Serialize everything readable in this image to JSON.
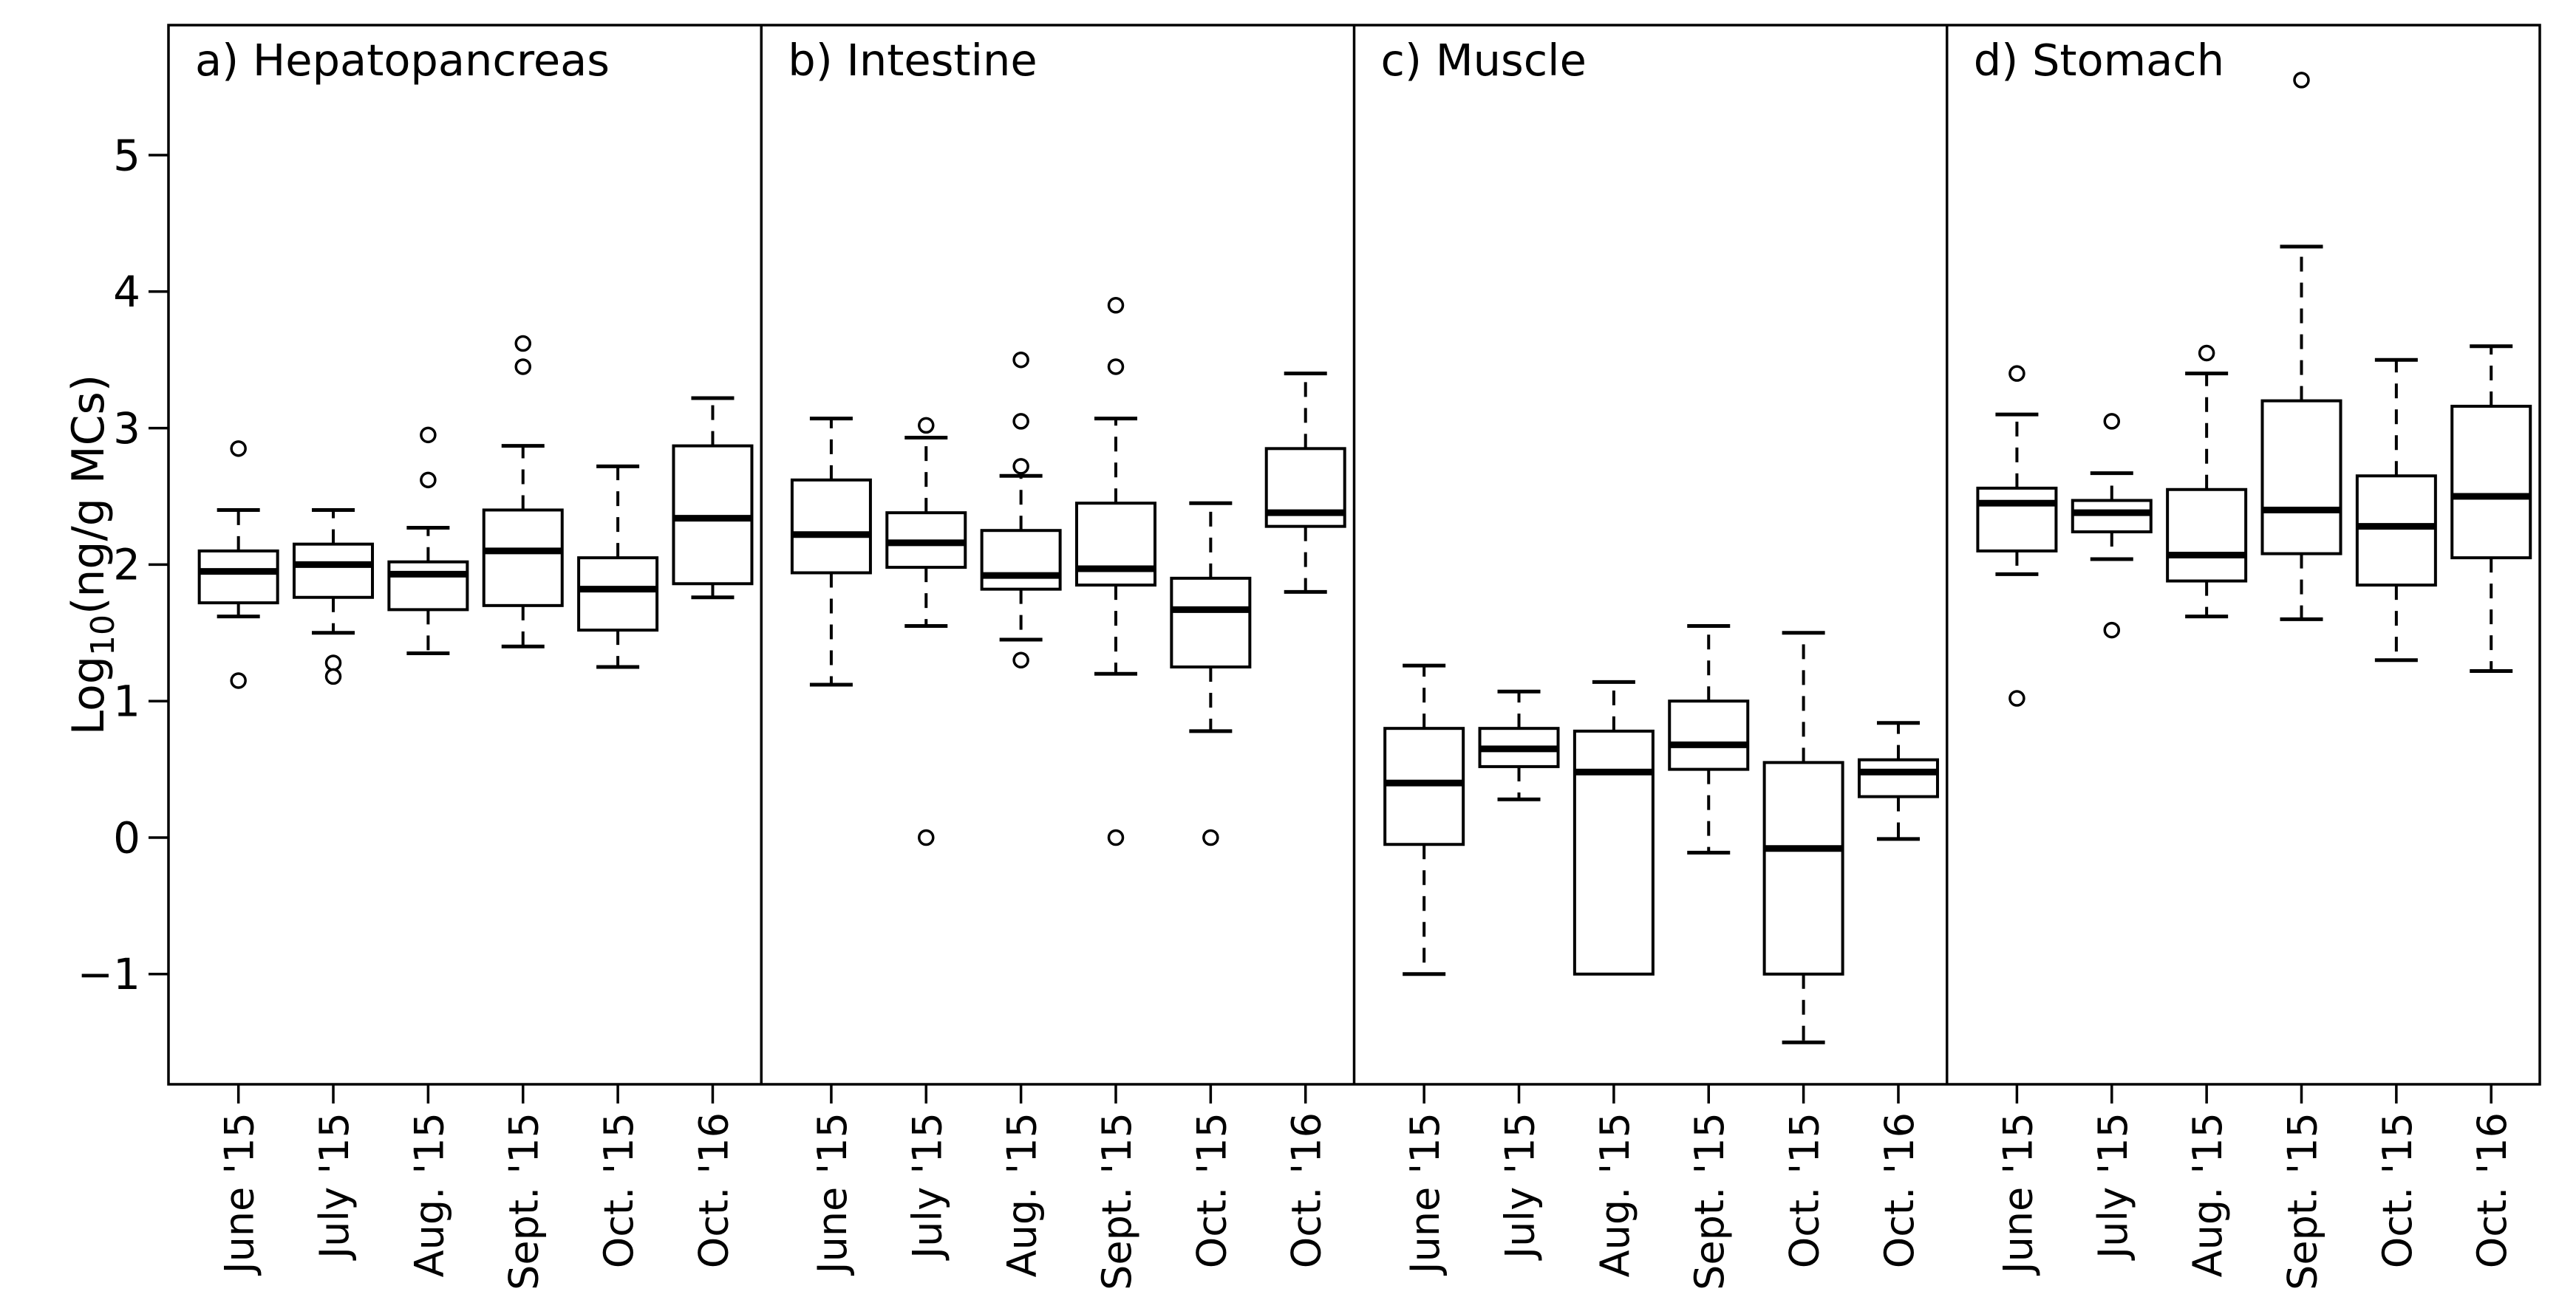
{
  "colors": {
    "foreground": "#000000",
    "background": "#ffffff",
    "box_fill": "#ffffff"
  },
  "chart_data": {
    "type": "boxplot",
    "title": "",
    "xlabel": "",
    "ylabel": {
      "prefix": "Log",
      "sub": "10",
      "suffix": "(ng/g MCs)",
      "plain": "Log10(ng/g MCs)"
    },
    "ylim": [
      -1.8,
      5.95
    ],
    "grid": false,
    "legend": null,
    "yticks": [
      {
        "value": 5,
        "label": "5"
      },
      {
        "value": 4,
        "label": "4"
      },
      {
        "value": 3,
        "label": "3"
      },
      {
        "value": 2,
        "label": "2"
      },
      {
        "value": 1,
        "label": "1"
      },
      {
        "value": 0,
        "label": "0"
      },
      {
        "value": -1,
        "label": "−1"
      }
    ],
    "categories": [
      "June '15",
      "July '15",
      "Aug. '15",
      "Sept. '15",
      "Oct. '15",
      "Oct. '16"
    ],
    "panels": [
      {
        "id": "a",
        "label": "a) Hepatopancreas",
        "boxes": [
          {
            "category": "June '15",
            "whisker_low": 1.62,
            "q1": 1.72,
            "median": 1.95,
            "q3": 2.1,
            "whisker_high": 2.4,
            "outliers": [
              2.85,
              1.15
            ]
          },
          {
            "category": "July '15",
            "whisker_low": 1.5,
            "q1": 1.76,
            "median": 2.0,
            "q3": 2.15,
            "whisker_high": 2.4,
            "outliers": [
              1.28,
              1.18
            ]
          },
          {
            "category": "Aug. '15",
            "whisker_low": 1.35,
            "q1": 1.67,
            "median": 1.93,
            "q3": 2.02,
            "whisker_high": 2.27,
            "outliers": [
              2.95,
              2.62
            ]
          },
          {
            "category": "Sept. '15",
            "whisker_low": 1.4,
            "q1": 1.7,
            "median": 2.1,
            "q3": 2.4,
            "whisker_high": 2.87,
            "outliers": [
              3.62,
              3.45
            ]
          },
          {
            "category": "Oct. '15",
            "whisker_low": 1.25,
            "q1": 1.52,
            "median": 1.82,
            "q3": 2.05,
            "whisker_high": 2.72,
            "outliers": []
          },
          {
            "category": "Oct. '16",
            "whisker_low": 1.76,
            "q1": 1.86,
            "median": 2.34,
            "q3": 2.87,
            "whisker_high": 3.22,
            "outliers": []
          }
        ]
      },
      {
        "id": "b",
        "label": "b) Intestine",
        "boxes": [
          {
            "category": "June '15",
            "whisker_low": 1.12,
            "q1": 1.94,
            "median": 2.22,
            "q3": 2.62,
            "whisker_high": 3.07,
            "outliers": []
          },
          {
            "category": "July '15",
            "whisker_low": 1.55,
            "q1": 1.98,
            "median": 2.16,
            "q3": 2.38,
            "whisker_high": 2.93,
            "outliers": [
              3.02,
              0.0
            ]
          },
          {
            "category": "Aug. '15",
            "whisker_low": 1.45,
            "q1": 1.82,
            "median": 1.92,
            "q3": 2.25,
            "whisker_high": 2.65,
            "outliers": [
              3.5,
              3.05,
              2.72,
              1.3
            ]
          },
          {
            "category": "Sept. '15",
            "whisker_low": 1.2,
            "q1": 1.85,
            "median": 1.97,
            "q3": 2.45,
            "whisker_high": 3.07,
            "outliers": [
              3.9,
              3.45,
              0.0
            ]
          },
          {
            "category": "Oct. '15",
            "whisker_low": 0.78,
            "q1": 1.25,
            "median": 1.67,
            "q3": 1.9,
            "whisker_high": 2.45,
            "outliers": [
              0.0
            ]
          },
          {
            "category": "Oct. '16",
            "whisker_low": 1.8,
            "q1": 2.28,
            "median": 2.38,
            "q3": 2.85,
            "whisker_high": 3.4,
            "outliers": []
          }
        ]
      },
      {
        "id": "c",
        "label": "c) Muscle",
        "boxes": [
          {
            "category": "June '15",
            "whisker_low": -1.0,
            "q1": -0.05,
            "median": 0.4,
            "q3": 0.8,
            "whisker_high": 1.26,
            "outliers": []
          },
          {
            "category": "July '15",
            "whisker_low": 0.28,
            "q1": 0.52,
            "median": 0.65,
            "q3": 0.8,
            "whisker_high": 1.07,
            "outliers": []
          },
          {
            "category": "Aug. '15",
            "whisker_low": -1.0,
            "q1": -1.0,
            "median": 0.48,
            "q3": 0.78,
            "whisker_high": 1.14,
            "outliers": []
          },
          {
            "category": "Sept. '15",
            "whisker_low": -0.11,
            "q1": 0.5,
            "median": 0.68,
            "q3": 1.0,
            "whisker_high": 1.55,
            "outliers": []
          },
          {
            "category": "Oct. '15",
            "whisker_low": -1.5,
            "q1": -1.0,
            "median": -0.08,
            "q3": 0.55,
            "whisker_high": 1.5,
            "outliers": []
          },
          {
            "category": "Oct. '16",
            "whisker_low": -0.01,
            "q1": 0.3,
            "median": 0.48,
            "q3": 0.57,
            "whisker_high": 0.84,
            "outliers": []
          }
        ]
      },
      {
        "id": "d",
        "label": "d) Stomach",
        "boxes": [
          {
            "category": "June '15",
            "whisker_low": 1.93,
            "q1": 2.1,
            "median": 2.45,
            "q3": 2.56,
            "whisker_high": 3.1,
            "outliers": [
              3.4,
              1.02
            ]
          },
          {
            "category": "July '15",
            "whisker_low": 2.04,
            "q1": 2.24,
            "median": 2.38,
            "q3": 2.47,
            "whisker_high": 2.67,
            "outliers": [
              3.05,
              1.52
            ]
          },
          {
            "category": "Aug. '15",
            "whisker_low": 1.62,
            "q1": 1.88,
            "median": 2.07,
            "q3": 2.55,
            "whisker_high": 3.4,
            "outliers": [
              3.55
            ]
          },
          {
            "category": "Sept. '15",
            "whisker_low": 1.6,
            "q1": 2.08,
            "median": 2.4,
            "q3": 3.2,
            "whisker_high": 4.33,
            "outliers": [
              5.55
            ]
          },
          {
            "category": "Oct. '15",
            "whisker_low": 1.3,
            "q1": 1.85,
            "median": 2.28,
            "q3": 2.65,
            "whisker_high": 3.5,
            "outliers": []
          },
          {
            "category": "Oct. '16",
            "whisker_low": 1.22,
            "q1": 2.05,
            "median": 2.5,
            "q3": 3.16,
            "whisker_high": 3.6,
            "outliers": []
          }
        ]
      }
    ]
  }
}
